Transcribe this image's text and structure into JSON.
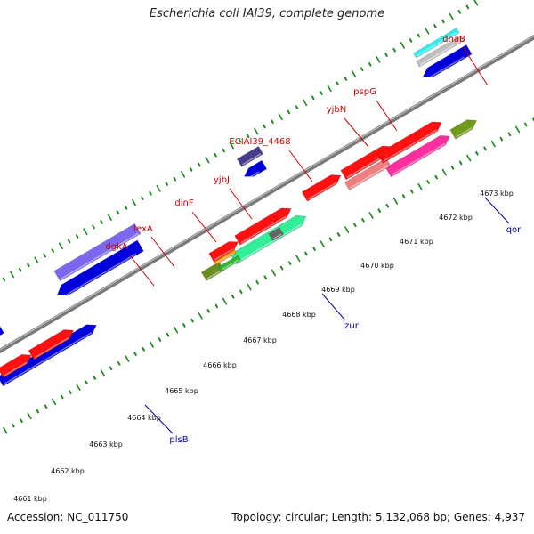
{
  "title": "Escherichia coli IAI39, complete genome",
  "footer": {
    "accession": "Accession: NC_011750",
    "summary": "Topology: circular; Length: 5,132,068 bp; Genes: 4,937"
  },
  "colors": {
    "backbone": "#888888",
    "tick": "#1a8a1a",
    "label_top": "#cc0000",
    "label_bottom": "#0000aa"
  },
  "gene_labels_top": [
    "dnaB",
    "pspG",
    "yjbN",
    "ECIAI39_4468",
    "yjbJ",
    "dinF",
    "lexA",
    "dgkA"
  ],
  "gene_labels_bottom": [
    "qor",
    "zur",
    "plsB"
  ],
  "kbp_labels": [
    "4661 kbp",
    "4662 kbp",
    "4663 kbp",
    "4664 kbp",
    "4665 kbp",
    "4666 kbp",
    "4667 kbp",
    "4668 kbp",
    "4669 kbp",
    "4670 kbp",
    "4671 kbp",
    "4672 kbp",
    "4673 kbp"
  ]
}
